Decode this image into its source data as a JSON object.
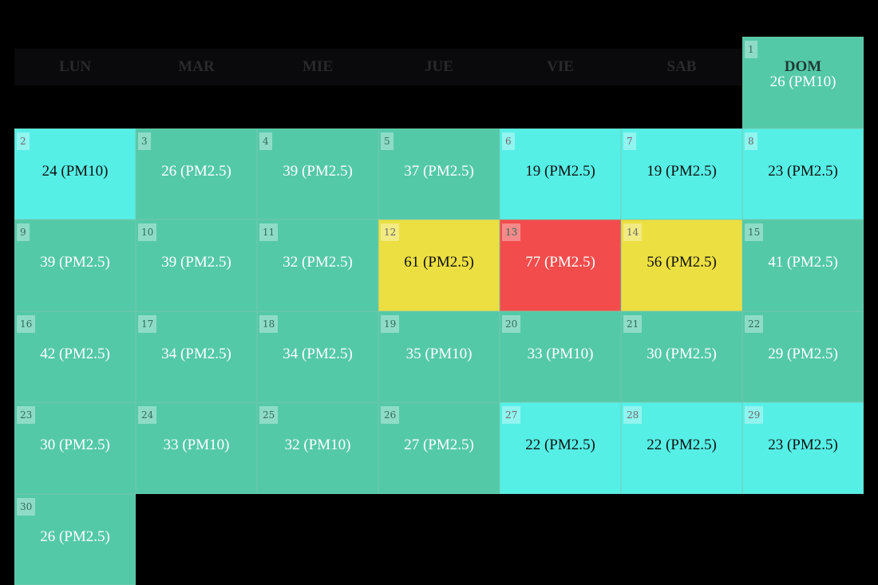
{
  "calendar": {
    "weekdays": [
      "LUN",
      "MAR",
      "MIE",
      "JUE",
      "VIE",
      "SAB",
      "DOM"
    ],
    "colors": {
      "background": "#000000",
      "good_green": "#54c9a8",
      "good_cyan": "#56efe6",
      "moderate_yellow": "#ecdf41",
      "unhealthy_red": "#f24c4c"
    },
    "days": [
      {
        "day": "1",
        "label": "26 (PM10)",
        "color": "#54c9a8",
        "text_color": "#ffffff"
      },
      {
        "day": "2",
        "label": "24 (PM10)",
        "color": "#56efe6",
        "text_color": "#111111"
      },
      {
        "day": "3",
        "label": "26 (PM2.5)",
        "color": "#54c9a8",
        "text_color": "#ffffff"
      },
      {
        "day": "4",
        "label": "39 (PM2.5)",
        "color": "#54c9a8",
        "text_color": "#ffffff"
      },
      {
        "day": "5",
        "label": "37 (PM2.5)",
        "color": "#54c9a8",
        "text_color": "#ffffff"
      },
      {
        "day": "6",
        "label": "19 (PM2.5)",
        "color": "#56efe6",
        "text_color": "#111111"
      },
      {
        "day": "7",
        "label": "19 (PM2.5)",
        "color": "#56efe6",
        "text_color": "#111111"
      },
      {
        "day": "8",
        "label": "23 (PM2.5)",
        "color": "#56efe6",
        "text_color": "#111111"
      },
      {
        "day": "9",
        "label": "39 (PM2.5)",
        "color": "#54c9a8",
        "text_color": "#ffffff"
      },
      {
        "day": "10",
        "label": "39 (PM2.5)",
        "color": "#54c9a8",
        "text_color": "#ffffff"
      },
      {
        "day": "11",
        "label": "32 (PM2.5)",
        "color": "#54c9a8",
        "text_color": "#ffffff"
      },
      {
        "day": "12",
        "label": "61 (PM2.5)",
        "color": "#ecdf41",
        "text_color": "#111111"
      },
      {
        "day": "13",
        "label": "77 (PM2.5)",
        "color": "#f24c4c",
        "text_color": "#ffffff"
      },
      {
        "day": "14",
        "label": "56 (PM2.5)",
        "color": "#ecdf41",
        "text_color": "#111111"
      },
      {
        "day": "15",
        "label": "41 (PM2.5)",
        "color": "#54c9a8",
        "text_color": "#ffffff"
      },
      {
        "day": "16",
        "label": "42 (PM2.5)",
        "color": "#54c9a8",
        "text_color": "#ffffff"
      },
      {
        "day": "17",
        "label": "34 (PM2.5)",
        "color": "#54c9a8",
        "text_color": "#ffffff"
      },
      {
        "day": "18",
        "label": "34 (PM2.5)",
        "color": "#54c9a8",
        "text_color": "#ffffff"
      },
      {
        "day": "19",
        "label": "35 (PM10)",
        "color": "#54c9a8",
        "text_color": "#ffffff"
      },
      {
        "day": "20",
        "label": "33 (PM10)",
        "color": "#54c9a8",
        "text_color": "#ffffff"
      },
      {
        "day": "21",
        "label": "30 (PM2.5)",
        "color": "#54c9a8",
        "text_color": "#ffffff"
      },
      {
        "day": "22",
        "label": "29 (PM2.5)",
        "color": "#54c9a8",
        "text_color": "#ffffff"
      },
      {
        "day": "23",
        "label": "30 (PM2.5)",
        "color": "#54c9a8",
        "text_color": "#ffffff"
      },
      {
        "day": "24",
        "label": "33 (PM10)",
        "color": "#54c9a8",
        "text_color": "#ffffff"
      },
      {
        "day": "25",
        "label": "32 (PM10)",
        "color": "#54c9a8",
        "text_color": "#ffffff"
      },
      {
        "day": "26",
        "label": "27 (PM2.5)",
        "color": "#54c9a8",
        "text_color": "#ffffff"
      },
      {
        "day": "27",
        "label": "22 (PM2.5)",
        "color": "#56efe6",
        "text_color": "#111111"
      },
      {
        "day": "28",
        "label": "22 (PM2.5)",
        "color": "#56efe6",
        "text_color": "#111111"
      },
      {
        "day": "29",
        "label": "23 (PM2.5)",
        "color": "#56efe6",
        "text_color": "#111111"
      },
      {
        "day": "30",
        "label": "26 (PM2.5)",
        "color": "#54c9a8",
        "text_color": "#ffffff"
      }
    ]
  }
}
